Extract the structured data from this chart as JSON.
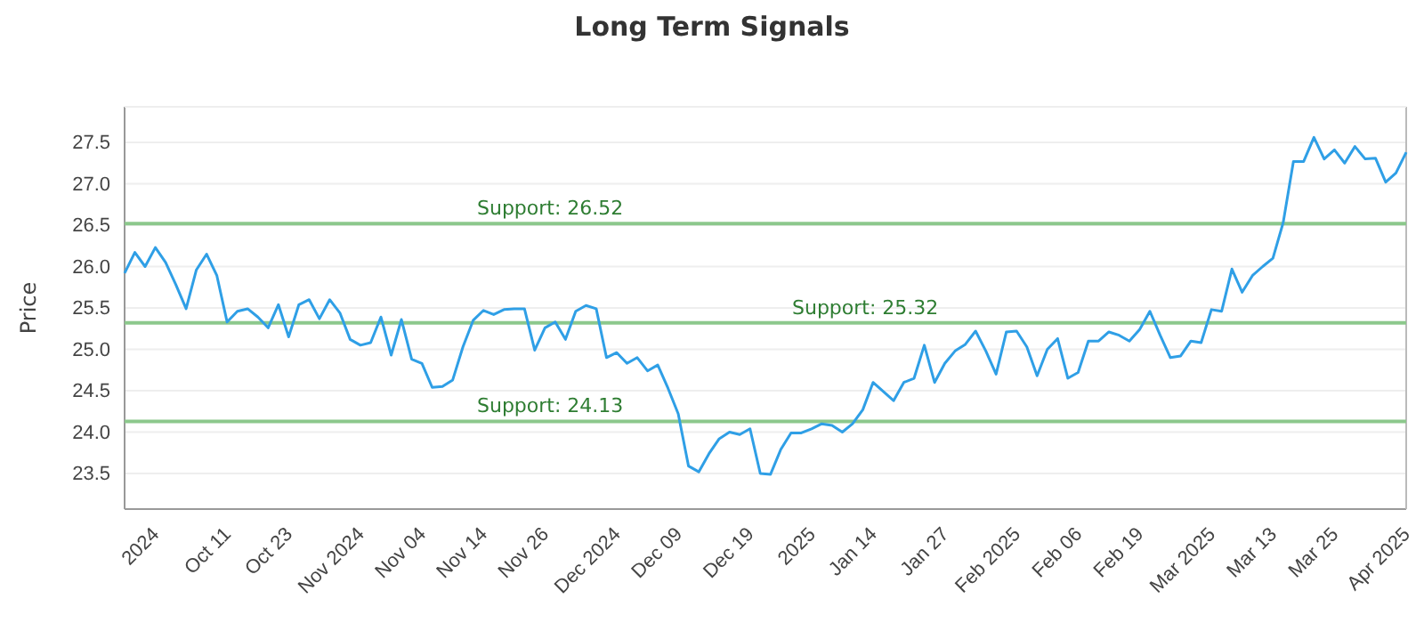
{
  "chart_data": {
    "type": "line",
    "title": "Long Term Signals",
    "ylabel": "Price",
    "categories": [
      null,
      null,
      null,
      "2024",
      null,
      null,
      null,
      null,
      null,
      null,
      "Oct 11",
      null,
      null,
      null,
      null,
      null,
      "Oct 23",
      null,
      null,
      null,
      null,
      null,
      null,
      "Nov 2024",
      null,
      null,
      null,
      null,
      null,
      "Nov 04",
      null,
      null,
      null,
      null,
      null,
      "Nov 14",
      null,
      null,
      null,
      null,
      null,
      "Nov 26",
      null,
      null,
      null,
      null,
      null,
      null,
      "Dec 2024",
      null,
      null,
      null,
      null,
      null,
      "Dec 09",
      null,
      null,
      null,
      null,
      null,
      null,
      "Dec 19",
      null,
      null,
      null,
      null,
      null,
      "2025",
      null,
      null,
      null,
      null,
      null,
      "Jan 14",
      null,
      null,
      null,
      null,
      null,
      null,
      "Jan 27",
      null,
      null,
      null,
      null,
      null,
      null,
      "Feb 2025",
      null,
      null,
      null,
      null,
      null,
      "Feb 06",
      null,
      null,
      null,
      null,
      null,
      "Feb 19",
      null,
      null,
      null,
      null,
      null,
      null,
      "Mar 2025",
      null,
      null,
      null,
      null,
      null,
      "Mar 13",
      null,
      null,
      null,
      null,
      null,
      "Mar 25",
      null,
      null,
      null,
      null,
      null,
      null,
      "Apr 2025"
    ],
    "series": [
      {
        "color": "#2f9fe6",
        "values": [
          25.92,
          26.17,
          26.0,
          26.23,
          26.05,
          25.78,
          25.49,
          25.96,
          26.15,
          25.89,
          25.33,
          25.46,
          25.49,
          25.39,
          25.26,
          25.54,
          25.15,
          25.54,
          25.6,
          25.37,
          25.6,
          25.44,
          25.12,
          25.05,
          25.08,
          25.39,
          24.93,
          25.36,
          24.88,
          24.83,
          24.54,
          24.55,
          24.63,
          25.03,
          25.35,
          25.47,
          25.42,
          25.48,
          25.49,
          25.49,
          24.99,
          25.26,
          25.33,
          25.12,
          25.46,
          25.53,
          25.49,
          24.9,
          24.96,
          24.83,
          24.9,
          24.74,
          24.81,
          24.53,
          24.22,
          23.59,
          23.52,
          23.74,
          23.92,
          24.0,
          23.97,
          24.04,
          23.5,
          23.49,
          23.79,
          23.99,
          23.99,
          24.04,
          24.1,
          24.08,
          24.0,
          24.1,
          24.27,
          24.6,
          24.49,
          24.38,
          24.6,
          24.65,
          25.05,
          24.6,
          24.83,
          24.98,
          25.06,
          25.22,
          24.98,
          24.7,
          25.21,
          25.22,
          25.03,
          24.68,
          25.0,
          25.13,
          24.65,
          24.72,
          25.1,
          25.1,
          25.21,
          25.17,
          25.1,
          25.24,
          25.46,
          25.17,
          24.9,
          24.92,
          25.1,
          25.08,
          25.48,
          25.46,
          25.97,
          25.69,
          25.89,
          26.0,
          26.1,
          26.53,
          27.27,
          27.27,
          27.56,
          27.3,
          27.41,
          27.25,
          27.45,
          27.3,
          27.31,
          27.02,
          27.13,
          27.38
        ]
      }
    ],
    "ylim": [
      23.07,
      27.93
    ],
    "yticks": [
      23.5,
      {
        "value": 24,
        "label": "24.0"
      },
      24.5,
      {
        "value": 25,
        "label": "25.0"
      },
      25.5,
      {
        "value": 26,
        "label": "26.0"
      },
      26.5,
      {
        "value": 27,
        "label": "27.0"
      },
      27.5
    ],
    "ref_lines": [
      {
        "axis": "y",
        "value": 26.52,
        "label": "Support: 26.52",
        "color": "#8cc88c"
      },
      {
        "axis": "y",
        "value": 25.32,
        "label": "Support: 25.32",
        "color": "#8cc88c"
      },
      {
        "axis": "y",
        "value": 24.13,
        "label": "Support: 24.13",
        "color": "#8cc88c"
      }
    ],
    "grid": "y",
    "marker": "none",
    "line_style": "solid"
  }
}
